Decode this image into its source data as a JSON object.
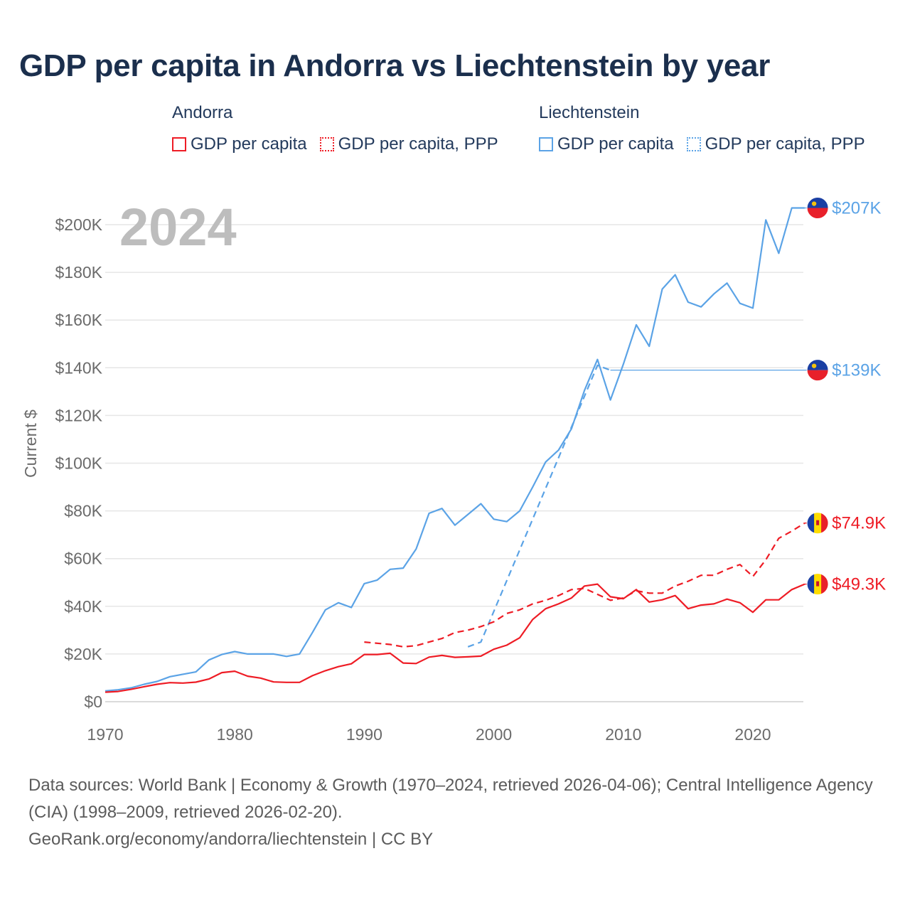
{
  "title": "GDP per capita in Andorra vs Liechtenstein by year",
  "legend": {
    "andorra": {
      "group": "Andorra",
      "items": [
        "GDP per capita",
        "GDP per capita, PPP"
      ]
    },
    "liechtenstein": {
      "group": "Liechtenstein",
      "items": [
        "GDP per capita",
        "GDP per capita, PPP"
      ]
    }
  },
  "colors": {
    "andorra": "#ee1c25",
    "liechtenstein": "#5ba3e6"
  },
  "footer": {
    "sources": "Data sources: World Bank | Economy & Growth (1970–2024, retrieved 2026-04-06); Central Intelligence Agency (CIA) (1998–2009, retrieved 2026-02-20).",
    "attribution": "GeoRank.org/economy/andorra/liechtenstein | CC BY"
  },
  "chart_data": {
    "type": "line",
    "title": "GDP per capita in Andorra vs Liechtenstein by year",
    "ylabel": "Current $",
    "xlabel": "",
    "year_label": "2024",
    "xlim": [
      1970,
      2024
    ],
    "ylim": [
      0,
      210000
    ],
    "x_ticks": [
      1970,
      1980,
      1990,
      2000,
      2010,
      2020
    ],
    "x_tick_labels": [
      "1970",
      "1980",
      "1990",
      "2000",
      "2010",
      "2020"
    ],
    "y_ticks": [
      0,
      20000,
      40000,
      60000,
      80000,
      100000,
      120000,
      140000,
      160000,
      180000,
      200000
    ],
    "y_tick_labels": [
      "$0",
      "$20K",
      "$40K",
      "$60K",
      "$80K",
      "$100K",
      "$120K",
      "$140K",
      "$160K",
      "$180K",
      "$200K"
    ],
    "series": [
      {
        "name": "Liechtenstein GDP per capita",
        "country": "Liechtenstein",
        "style": "solid",
        "color": "#5ba3e6",
        "end_label": "$207K",
        "end_value": 207000,
        "end_x": 2025,
        "points": [
          [
            1970,
            4500
          ],
          [
            1971,
            5000
          ],
          [
            1972,
            5800
          ],
          [
            1973,
            7300
          ],
          [
            1974,
            8500
          ],
          [
            1975,
            10500
          ],
          [
            1976,
            11500
          ],
          [
            1977,
            12500
          ],
          [
            1978,
            17500
          ],
          [
            1979,
            19800
          ],
          [
            1980,
            21000
          ],
          [
            1981,
            20000
          ],
          [
            1982,
            20000
          ],
          [
            1983,
            20000
          ],
          [
            1984,
            19000
          ],
          [
            1985,
            20000
          ],
          [
            1986,
            29000
          ],
          [
            1987,
            38500
          ],
          [
            1988,
            41500
          ],
          [
            1989,
            39500
          ],
          [
            1990,
            49500
          ],
          [
            1991,
            51000
          ],
          [
            1992,
            55500
          ],
          [
            1993,
            56000
          ],
          [
            1994,
            64000
          ],
          [
            1995,
            79000
          ],
          [
            1996,
            81000
          ],
          [
            1997,
            74000
          ],
          [
            1998,
            78500
          ],
          [
            1999,
            83000
          ],
          [
            2000,
            76500
          ],
          [
            2001,
            75500
          ],
          [
            2002,
            80000
          ],
          [
            2003,
            90000
          ],
          [
            2004,
            100500
          ],
          [
            2005,
            105500
          ],
          [
            2006,
            114500
          ],
          [
            2007,
            130500
          ],
          [
            2008,
            143500
          ],
          [
            2009,
            126500
          ],
          [
            2010,
            141500
          ],
          [
            2011,
            158000
          ],
          [
            2012,
            149000
          ],
          [
            2013,
            173000
          ],
          [
            2014,
            179000
          ],
          [
            2015,
            167500
          ],
          [
            2016,
            165500
          ],
          [
            2017,
            171000
          ],
          [
            2018,
            175500
          ],
          [
            2019,
            167000
          ],
          [
            2020,
            165000
          ],
          [
            2021,
            202000
          ],
          [
            2022,
            188000
          ],
          [
            2023,
            207000
          ],
          [
            2024,
            207000
          ]
        ]
      },
      {
        "name": "Liechtenstein GDP per capita, PPP",
        "country": "Liechtenstein",
        "style": "dashed",
        "color": "#5ba3e6",
        "end_label": "$139K",
        "end_value": 139000,
        "end_x": 2025,
        "points": [
          [
            1998,
            23000
          ],
          [
            1999,
            25000
          ],
          [
            2008,
            141000
          ],
          [
            2009,
            139000
          ]
        ]
      },
      {
        "name": "Andorra GDP per capita, PPP",
        "country": "Andorra",
        "style": "dashed",
        "color": "#ee1c25",
        "end_label": "$74.9K",
        "end_value": 74900,
        "end_x": 2025,
        "points": [
          [
            1990,
            25000
          ],
          [
            1991,
            24500
          ],
          [
            1992,
            24000
          ],
          [
            1993,
            23000
          ],
          [
            1994,
            23500
          ],
          [
            1995,
            25000
          ],
          [
            1996,
            26500
          ],
          [
            1997,
            29000
          ],
          [
            1998,
            30000
          ],
          [
            1999,
            31500
          ],
          [
            2000,
            33500
          ],
          [
            2001,
            37000
          ],
          [
            2002,
            38500
          ],
          [
            2003,
            41000
          ],
          [
            2004,
            42500
          ],
          [
            2005,
            44500
          ],
          [
            2006,
            47000
          ],
          [
            2007,
            47500
          ],
          [
            2008,
            45000
          ],
          [
            2009,
            42500
          ],
          [
            2010,
            43500
          ],
          [
            2011,
            46500
          ],
          [
            2012,
            45500
          ],
          [
            2013,
            45500
          ],
          [
            2014,
            48500
          ],
          [
            2015,
            50500
          ],
          [
            2016,
            53000
          ],
          [
            2017,
            53000
          ],
          [
            2018,
            55500
          ],
          [
            2019,
            57500
          ],
          [
            2020,
            52500
          ],
          [
            2021,
            59500
          ],
          [
            2022,
            68500
          ],
          [
            2023,
            71500
          ],
          [
            2024,
            74900
          ]
        ]
      },
      {
        "name": "Andorra GDP per capita",
        "country": "Andorra",
        "style": "solid",
        "color": "#ee1c25",
        "end_label": "$49.3K",
        "end_value": 49300,
        "end_x": 2025,
        "points": [
          [
            1970,
            4000
          ],
          [
            1971,
            4300
          ],
          [
            1972,
            5200
          ],
          [
            1973,
            6300
          ],
          [
            1974,
            7300
          ],
          [
            1975,
            8000
          ],
          [
            1976,
            7800
          ],
          [
            1977,
            8200
          ],
          [
            1978,
            9500
          ],
          [
            1979,
            12200
          ],
          [
            1980,
            12800
          ],
          [
            1981,
            10700
          ],
          [
            1982,
            9900
          ],
          [
            1983,
            8300
          ],
          [
            1984,
            8100
          ],
          [
            1985,
            8100
          ],
          [
            1986,
            10900
          ],
          [
            1987,
            13000
          ],
          [
            1988,
            14700
          ],
          [
            1989,
            15900
          ],
          [
            1990,
            19800
          ],
          [
            1991,
            19800
          ],
          [
            1992,
            20300
          ],
          [
            1993,
            16200
          ],
          [
            1994,
            16000
          ],
          [
            1995,
            18700
          ],
          [
            1996,
            19400
          ],
          [
            1997,
            18600
          ],
          [
            1998,
            18800
          ],
          [
            1999,
            19100
          ],
          [
            2000,
            22000
          ],
          [
            2001,
            23700
          ],
          [
            2002,
            26800
          ],
          [
            2003,
            34500
          ],
          [
            2004,
            39000
          ],
          [
            2005,
            41000
          ],
          [
            2006,
            43500
          ],
          [
            2007,
            48500
          ],
          [
            2008,
            49300
          ],
          [
            2009,
            44000
          ],
          [
            2010,
            43200
          ],
          [
            2011,
            47000
          ],
          [
            2012,
            41800
          ],
          [
            2013,
            42700
          ],
          [
            2014,
            44500
          ],
          [
            2015,
            39000
          ],
          [
            2016,
            40500
          ],
          [
            2017,
            41000
          ],
          [
            2018,
            43000
          ],
          [
            2019,
            41500
          ],
          [
            2020,
            37500
          ],
          [
            2021,
            42700
          ],
          [
            2022,
            42700
          ],
          [
            2023,
            47000
          ],
          [
            2024,
            49300
          ]
        ]
      }
    ]
  }
}
